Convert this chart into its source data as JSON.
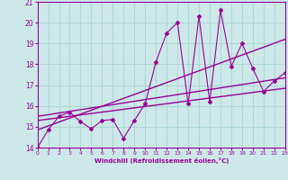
{
  "xlabel": "Windchill (Refroidissement éolien,°C)",
  "xlim": [
    0,
    23
  ],
  "ylim": [
    14,
    21
  ],
  "yticks": [
    14,
    15,
    16,
    17,
    18,
    19,
    20,
    21
  ],
  "xticks": [
    0,
    1,
    2,
    3,
    4,
    5,
    6,
    7,
    8,
    9,
    10,
    11,
    12,
    13,
    14,
    15,
    16,
    17,
    18,
    19,
    20,
    21,
    22,
    23
  ],
  "bg_color": "#cce8e8",
  "grid_color": "#aad4d4",
  "line_color": "#990099",
  "series1_x": [
    0,
    1,
    2,
    3,
    4,
    5,
    6,
    7,
    8,
    9,
    10,
    11,
    12,
    13,
    14,
    15,
    16,
    17,
    18,
    19,
    20,
    21,
    22,
    23
  ],
  "series1_y": [
    14.0,
    14.85,
    15.5,
    15.7,
    15.25,
    14.9,
    15.3,
    15.35,
    14.45,
    15.3,
    16.1,
    18.1,
    19.5,
    20.0,
    16.1,
    20.3,
    16.2,
    20.6,
    17.9,
    19.0,
    17.8,
    16.7,
    17.2,
    17.6
  ],
  "trend1_x": [
    0,
    23
  ],
  "trend1_y": [
    15.3,
    16.85
  ],
  "trend2_x": [
    0,
    23
  ],
  "trend2_y": [
    15.5,
    17.35
  ],
  "trend3_x": [
    0,
    23
  ],
  "trend3_y": [
    14.85,
    19.2
  ]
}
